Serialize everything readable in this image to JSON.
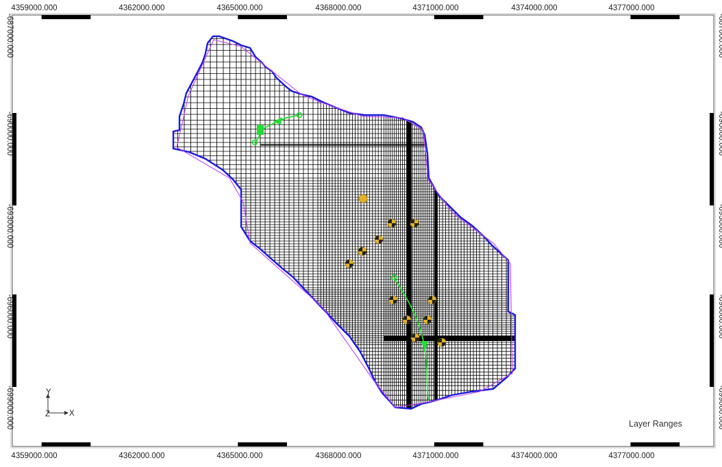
{
  "map": {
    "x_ticks": [
      "4359000.000",
      "4362000.000",
      "4365000.000",
      "4368000.000",
      "4371000.000",
      "4374000.000",
      "4377000.000"
    ],
    "y_ticks_left": [
      "-687000.000",
      "-690000.000",
      "-693000.000",
      "-696000.000",
      "-699000.000"
    ],
    "y_ticks_right": [
      "-687000.000",
      "-690000.000",
      "-693000.000",
      "-696000.000",
      "-699000.000"
    ],
    "axis_triad": {
      "y": "Y",
      "z": "Z",
      "x": "X"
    },
    "label": "Layer Ranges",
    "colors": {
      "background": "#ffffff",
      "grid": "#000000",
      "boundary": "#1a1adc",
      "coverage": "#c040ff",
      "stream": "#22dd33",
      "well": "#e3b226",
      "scale_bar": "#000000"
    },
    "icons": [
      "well-icon",
      "stream-node-icon",
      "axis-triad-icon"
    ]
  }
}
